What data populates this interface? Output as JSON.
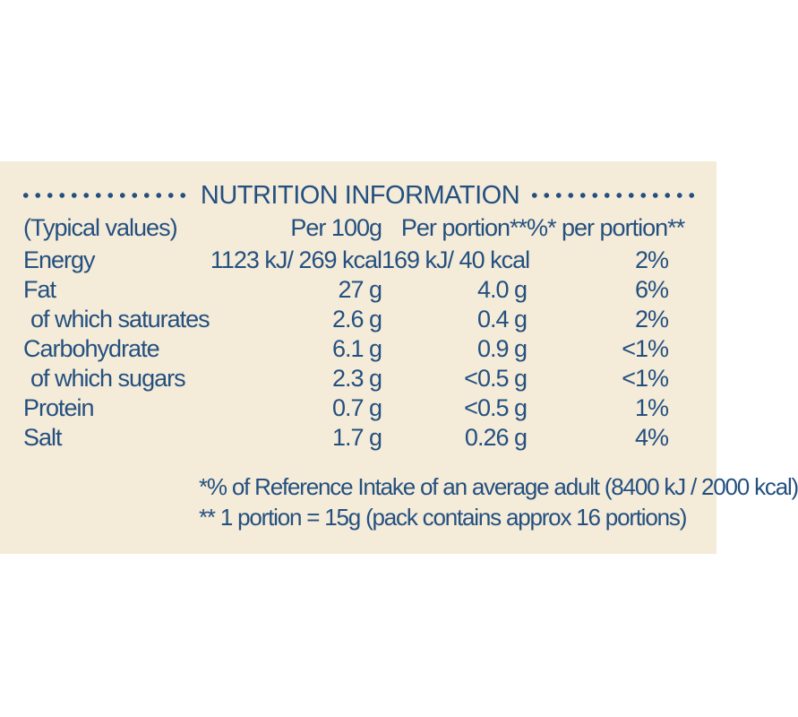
{
  "label": {
    "title": "NUTRITION INFORMATION",
    "header": {
      "col0": "(Typical values)",
      "col1": "Per 100g",
      "col2": "Per portion**",
      "col3": "%* per portion**"
    },
    "rows": [
      {
        "name": "Energy",
        "per100": "1123 kJ/ 269 kcal",
        "portion": "169 kJ/ 40 kcal",
        "ri": "2%"
      },
      {
        "name": "Fat",
        "per100": "27 g",
        "portion": "4.0 g",
        "ri": "6%"
      },
      {
        "name": "of which saturates",
        "per100": "2.6 g",
        "portion": "0.4 g",
        "ri": "2%"
      },
      {
        "name": "Carbohydrate",
        "per100": "6.1 g",
        "portion": "0.9 g",
        "ri": "<1%"
      },
      {
        "name": "of which sugars",
        "per100": "2.3 g",
        "portion": "<0.5 g",
        "ri": "<1%"
      },
      {
        "name": "Protein",
        "per100": "0.7 g",
        "portion": "<0.5 g",
        "ri": "1%"
      },
      {
        "name": "Salt",
        "per100": "1.7 g",
        "portion": "0.26 g",
        "ri": "4%"
      }
    ],
    "footnote1": "*% of Reference Intake of an average adult (8400 kJ / 2000 kcal)",
    "footnote2": "** 1 portion = 15g (pack contains approx 16 portions)"
  },
  "colors": {
    "background": "#f4ebd9",
    "text": "#24507f"
  }
}
